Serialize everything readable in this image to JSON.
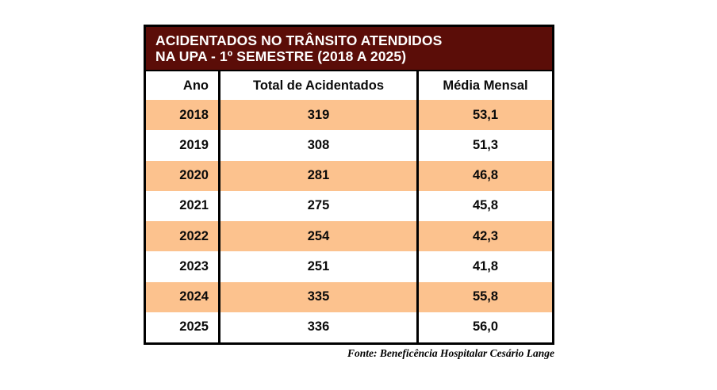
{
  "table": {
    "title_line1": "ACIDENTADOS NO TRÂNSITO ATENDIDOS",
    "title_line2": "NA UPA - 1º SEMESTRE (2018 A 2025)",
    "columns": {
      "ano": "Ano",
      "total": "Total de Acidentados",
      "media": "Média Mensal"
    },
    "rows": [
      {
        "ano": "2018",
        "total": "319",
        "media": "53,1"
      },
      {
        "ano": "2019",
        "total": "308",
        "media": "51,3"
      },
      {
        "ano": "2020",
        "total": "281",
        "media": "46,8"
      },
      {
        "ano": "2021",
        "total": "275",
        "media": "45,8"
      },
      {
        "ano": "2022",
        "total": "254",
        "media": "42,3"
      },
      {
        "ano": "2023",
        "total": "251",
        "media": "41,8"
      },
      {
        "ano": "2024",
        "total": "335",
        "media": "55,8"
      },
      {
        "ano": "2025",
        "total": "336",
        "media": "56,0"
      }
    ],
    "source": "Fonte: Beneficência Hospitalar Cesário Lange"
  },
  "colors": {
    "title_bg": "#5B0D08",
    "row_alt_bg": "#FCC28E",
    "border": "#000000",
    "title_text": "#FFFFFF",
    "body_text": "#0A0A0A"
  },
  "chart_data": {
    "type": "table",
    "title": "ACIDENTADOS NO TRÂNSITO ATENDIDOS NA UPA - 1º SEMESTRE (2018 A 2025)",
    "columns": [
      "Ano",
      "Total de Acidentados",
      "Média Mensal"
    ],
    "categories": [
      "2018",
      "2019",
      "2020",
      "2021",
      "2022",
      "2023",
      "2024",
      "2025"
    ],
    "series": [
      {
        "name": "Total de Acidentados",
        "values": [
          319,
          308,
          281,
          275,
          254,
          251,
          335,
          336
        ]
      },
      {
        "name": "Média Mensal",
        "values": [
          53.1,
          51.3,
          46.8,
          45.8,
          42.3,
          41.8,
          55.8,
          56.0
        ]
      }
    ],
    "source": "Fonte: Beneficência Hospitalar Cesário Lange",
    "layout": {
      "alternating_row_fill": true,
      "header_fill": "dark-maroon",
      "grid": "vertical-only"
    }
  }
}
